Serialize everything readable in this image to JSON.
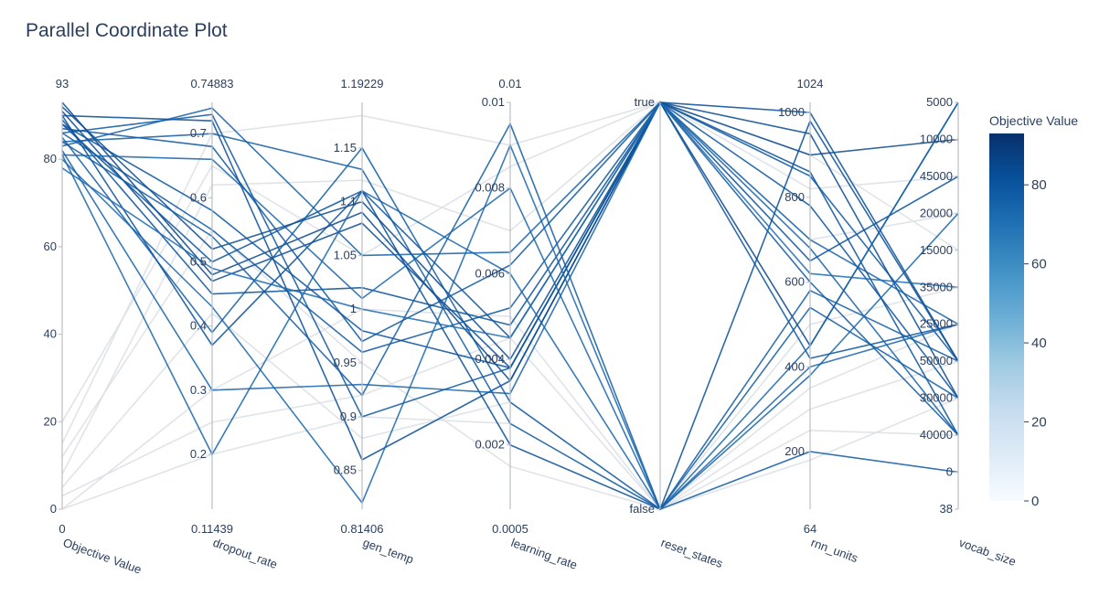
{
  "title": "Parallel Coordinate Plot",
  "colors": {
    "line_low": "#f7fbff",
    "line_high": "#08306b",
    "faded_line": "#dde1e6",
    "axis": "#b9bec5",
    "text": "#2a3f5f"
  },
  "chart_data": {
    "type": "parallel_coordinates",
    "title": "Parallel Coordinate Plot",
    "colorscale": "Blues",
    "colorbar": {
      "title": "Objective Value",
      "ticks": [
        "0",
        "20",
        "40",
        "60",
        "80"
      ],
      "range": [
        0,
        93
      ]
    },
    "axes": [
      {
        "label": "Objective Value",
        "kind": "linear",
        "range": [
          0,
          93
        ],
        "range_labels": [
          "0",
          "93"
        ],
        "ticks": [
          {
            "v": 0,
            "t": "0"
          },
          {
            "v": 20,
            "t": "20"
          },
          {
            "v": 40,
            "t": "40"
          },
          {
            "v": 60,
            "t": "60"
          },
          {
            "v": 80,
            "t": "80"
          }
        ]
      },
      {
        "label": "dropout_rate",
        "kind": "linear",
        "range": [
          0.11439,
          0.74883
        ],
        "range_labels": [
          "0.11439",
          "0.74883"
        ],
        "ticks": [
          {
            "v": 0.2,
            "t": "0.2"
          },
          {
            "v": 0.3,
            "t": "0.3"
          },
          {
            "v": 0.4,
            "t": "0.4"
          },
          {
            "v": 0.5,
            "t": "0.5"
          },
          {
            "v": 0.6,
            "t": "0.6"
          },
          {
            "v": 0.7,
            "t": "0.7"
          }
        ]
      },
      {
        "label": "gen_temp",
        "kind": "linear",
        "range": [
          0.81406,
          1.19229
        ],
        "range_labels": [
          "0.81406",
          "1.19229"
        ],
        "ticks": [
          {
            "v": 0.85,
            "t": "0.85"
          },
          {
            "v": 0.9,
            "t": "0.9"
          },
          {
            "v": 0.95,
            "t": "0.95"
          },
          {
            "v": 1.0,
            "t": "1"
          },
          {
            "v": 1.05,
            "t": "1.05"
          },
          {
            "v": 1.1,
            "t": "1.1"
          },
          {
            "v": 1.15,
            "t": "1.15"
          }
        ]
      },
      {
        "label": "learning_rate",
        "kind": "linear",
        "range": [
          0.0005,
          0.01
        ],
        "range_labels": [
          "0.0005",
          "0.01"
        ],
        "ticks": [
          {
            "v": 0.002,
            "t": "0.002"
          },
          {
            "v": 0.004,
            "t": "0.004"
          },
          {
            "v": 0.006,
            "t": "0.006"
          },
          {
            "v": 0.008,
            "t": "0.008"
          },
          {
            "v": 0.01,
            "t": "0.01"
          }
        ]
      },
      {
        "label": "reset_states",
        "kind": "categorical",
        "range": [
          0,
          1
        ],
        "range_labels": [
          "",
          ""
        ],
        "ticks": [
          {
            "v": 0,
            "t": "false"
          },
          {
            "v": 1,
            "t": "true"
          }
        ]
      },
      {
        "label": "rnn_units",
        "kind": "linear",
        "range": [
          64,
          1024
        ],
        "range_labels": [
          "64",
          "1024"
        ],
        "ticks": [
          {
            "v": 200,
            "t": "200"
          },
          {
            "v": 400,
            "t": "400"
          },
          {
            "v": 600,
            "t": "600"
          },
          {
            "v": 800,
            "t": "800"
          },
          {
            "v": 1000,
            "t": "1000"
          }
        ]
      },
      {
        "label": "vocab_size",
        "kind": "categorical",
        "range": [
          0,
          11
        ],
        "range_labels": [
          "",
          ""
        ],
        "ticks": [
          {
            "v": 0,
            "t": "38"
          },
          {
            "v": 1,
            "t": "0"
          },
          {
            "v": 2,
            "t": "40000"
          },
          {
            "v": 3,
            "t": "30000"
          },
          {
            "v": 4,
            "t": "50000"
          },
          {
            "v": 5,
            "t": "25000"
          },
          {
            "v": 6,
            "t": "35000"
          },
          {
            "v": 7,
            "t": "15000"
          },
          {
            "v": 8,
            "t": "20000"
          },
          {
            "v": 9,
            "t": "45000"
          },
          {
            "v": 10,
            "t": "10000"
          },
          {
            "v": 11,
            "t": "5000"
          }
        ]
      }
    ],
    "trials": [
      {
        "values": [
          93,
          0.48,
          1.09,
          0.0035,
          1,
          450,
          11
        ]
      },
      {
        "values": [
          92,
          0.52,
          1.1,
          0.004,
          1,
          900,
          10
        ]
      },
      {
        "values": [
          91,
          0.47,
          1.08,
          0.0038,
          1,
          950,
          3
        ]
      },
      {
        "values": [
          90,
          0.72,
          0.86,
          0.0035,
          1,
          1000,
          4
        ]
      },
      {
        "values": [
          90,
          0.37,
          1.11,
          0.002,
          0,
          980,
          4
        ]
      },
      {
        "values": [
          89,
          0.45,
          1.02,
          0.0048,
          1,
          650,
          9
        ]
      },
      {
        "values": [
          88,
          0.58,
          0.98,
          0.0038,
          1,
          860,
          2
        ]
      },
      {
        "values": [
          88,
          0.5,
          1.11,
          0.0045,
          1,
          780,
          3
        ]
      },
      {
        "values": [
          87,
          0.68,
          0.97,
          0.0062,
          1,
          420,
          5
        ]
      },
      {
        "values": [
          86,
          0.73,
          0.9,
          0.0038,
          1,
          600,
          2
        ]
      },
      {
        "values": [
          86,
          0.55,
          0.96,
          0.0052,
          1,
          850,
          4
        ]
      },
      {
        "values": [
          85,
          0.39,
          1.15,
          0.003,
          0,
          200,
          1
        ]
      },
      {
        "values": [
          84,
          0.7,
          1.13,
          0.0025,
          0,
          580,
          4
        ]
      },
      {
        "values": [
          84,
          0.54,
          0.92,
          0.0095,
          0,
          540,
          3
        ]
      },
      {
        "values": [
          83,
          0.74,
          1.05,
          0.0065,
          1,
          700,
          5
        ]
      },
      {
        "values": [
          82,
          0.3,
          0.93,
          0.0032,
          1,
          680,
          2
        ]
      },
      {
        "values": [
          81,
          0.66,
          1.01,
          0.008,
          0,
          400,
          5
        ]
      },
      {
        "values": [
          81,
          0.2,
          1.11,
          0.006,
          0,
          380,
          8
        ]
      },
      {
        "values": [
          80,
          0.43,
          0.82,
          0.009,
          0,
          450,
          11
        ]
      },
      {
        "values": [
          78,
          0.49,
          1.0,
          0.0045,
          1,
          620,
          6
        ]
      },
      {
        "values": [
          0,
          0.2,
          0.9,
          0.0025,
          0,
          300,
          4
        ]
      },
      {
        "values": [
          0,
          0.3,
          1.0,
          0.005,
          0,
          500,
          6
        ]
      },
      {
        "values": [
          5,
          0.42,
          0.88,
          0.003,
          0,
          250,
          2
        ]
      },
      {
        "values": [
          8,
          0.62,
          1.12,
          0.007,
          1,
          700,
          8
        ]
      },
      {
        "values": [
          12,
          0.55,
          0.95,
          0.0015,
          0,
          180,
          3
        ]
      },
      {
        "values": [
          15,
          0.7,
          1.18,
          0.009,
          1,
          900,
          7
        ]
      },
      {
        "values": [
          3,
          0.25,
          0.92,
          0.0045,
          0,
          350,
          5
        ]
      },
      {
        "values": [
          20,
          0.65,
          1.05,
          0.0085,
          1,
          820,
          9
        ]
      }
    ]
  }
}
